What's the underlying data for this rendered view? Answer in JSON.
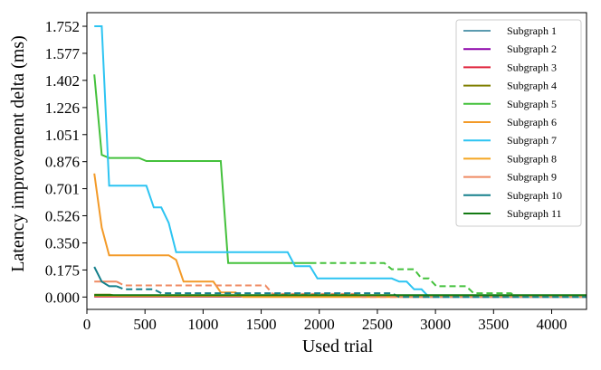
{
  "chart_data": {
    "type": "line",
    "xlabel": "Used trial",
    "ylabel": "Latency improvement delta (ms)",
    "xlim": [
      0,
      4300
    ],
    "ylim": [
      -0.08,
      1.84
    ],
    "xticks": [
      0,
      500,
      1000,
      1500,
      2000,
      2500,
      3000,
      3500,
      4000
    ],
    "xtick_labels": [
      "0",
      "500",
      "1000",
      "1500",
      "2000",
      "2500",
      "3000",
      "3500",
      "4000"
    ],
    "yticks": [
      0.0,
      0.175,
      0.35,
      0.526,
      0.701,
      0.876,
      1.051,
      1.226,
      1.402,
      1.577,
      1.752
    ],
    "ytick_labels": [
      "0.000",
      "0.175",
      "0.350",
      "0.526",
      "0.701",
      "0.876",
      "1.051",
      "1.226",
      "1.402",
      "1.577",
      "1.752"
    ],
    "legend_position": "top-right",
    "series": [
      {
        "name": "Subgraph 1",
        "color": "#5b9bb0",
        "solid": [
          [
            64,
            0.005
          ],
          [
            4300,
            0.005
          ]
        ],
        "dashed": []
      },
      {
        "name": "Subgraph 2",
        "color": "#8b00a8",
        "solid": [
          [
            64,
            0.003
          ],
          [
            4300,
            0.003
          ]
        ],
        "dashed": []
      },
      {
        "name": "Subgraph 3",
        "color": "#e0243c",
        "solid": [
          [
            64,
            0.004
          ],
          [
            4300,
            0.004
          ]
        ],
        "dashed": []
      },
      {
        "name": "Subgraph 4",
        "color": "#7f7f00",
        "solid": [
          [
            64,
            0.015
          ],
          [
            200,
            0.015
          ],
          [
            260,
            0.006
          ],
          [
            4300,
            0.006
          ]
        ],
        "dashed": []
      },
      {
        "name": "Subgraph 5",
        "color": "#44c13c",
        "solid": [
          [
            64,
            1.44
          ],
          [
            128,
            0.92
          ],
          [
            192,
            0.9
          ],
          [
            448,
            0.9
          ],
          [
            512,
            0.88
          ],
          [
            1152,
            0.88
          ],
          [
            1216,
            0.22
          ],
          [
            1920,
            0.22
          ]
        ],
        "dashed": [
          [
            1920,
            0.22
          ],
          [
            2560,
            0.22
          ],
          [
            2624,
            0.18
          ],
          [
            2816,
            0.18
          ],
          [
            2880,
            0.12
          ],
          [
            2944,
            0.12
          ],
          [
            3008,
            0.07
          ],
          [
            3264,
            0.07
          ],
          [
            3328,
            0.025
          ],
          [
            3648,
            0.025
          ],
          [
            3712,
            0.0
          ],
          [
            4300,
            0.0
          ]
        ]
      },
      {
        "name": "Subgraph 6",
        "color": "#f39a28",
        "solid": [
          [
            64,
            0.8
          ],
          [
            128,
            0.45
          ],
          [
            192,
            0.27
          ],
          [
            704,
            0.27
          ],
          [
            768,
            0.24
          ],
          [
            832,
            0.1
          ],
          [
            1088,
            0.1
          ],
          [
            1152,
            0.03
          ],
          [
            1280,
            0.03
          ],
          [
            1344,
            0.0
          ],
          [
            4300,
            0.0
          ]
        ],
        "dashed": []
      },
      {
        "name": "Subgraph 7",
        "color": "#2cc4f2",
        "solid": [
          [
            64,
            1.752
          ],
          [
            128,
            1.752
          ],
          [
            192,
            0.72
          ],
          [
            512,
            0.72
          ],
          [
            576,
            0.58
          ],
          [
            640,
            0.58
          ],
          [
            704,
            0.48
          ],
          [
            768,
            0.29
          ],
          [
            1728,
            0.29
          ],
          [
            1792,
            0.2
          ],
          [
            1920,
            0.2
          ],
          [
            1984,
            0.12
          ],
          [
            2624,
            0.12
          ],
          [
            2688,
            0.1
          ],
          [
            2752,
            0.1
          ],
          [
            2816,
            0.05
          ],
          [
            2880,
            0.05
          ],
          [
            2944,
            0.0
          ],
          [
            4300,
            0.0
          ]
        ],
        "dashed": []
      },
      {
        "name": "Subgraph 8",
        "color": "#f5a623",
        "solid": [
          [
            64,
            0.008
          ],
          [
            4300,
            0.008
          ]
        ],
        "dashed": []
      },
      {
        "name": "Subgraph 9",
        "color": "#ef8a62",
        "solid": [
          [
            64,
            0.1
          ],
          [
            256,
            0.1
          ]
        ],
        "dashed": [
          [
            256,
            0.1
          ],
          [
            320,
            0.075
          ],
          [
            1536,
            0.075
          ],
          [
            1600,
            0.02
          ],
          [
            2304,
            0.02
          ],
          [
            2368,
            0.0
          ],
          [
            4300,
            0.0
          ]
        ]
      },
      {
        "name": "Subgraph 10",
        "color": "#15808c",
        "solid": [
          [
            64,
            0.195
          ],
          [
            128,
            0.1
          ],
          [
            192,
            0.07
          ],
          [
            256,
            0.07
          ]
        ],
        "dashed": [
          [
            256,
            0.07
          ],
          [
            320,
            0.05
          ],
          [
            576,
            0.05
          ],
          [
            640,
            0.025
          ],
          [
            2624,
            0.025
          ],
          [
            2688,
            0.0
          ],
          [
            4300,
            0.0
          ]
        ]
      },
      {
        "name": "Subgraph 11",
        "color": "#137a13",
        "solid": [
          [
            64,
            0.012
          ],
          [
            4300,
            0.012
          ]
        ],
        "dashed": []
      }
    ]
  }
}
